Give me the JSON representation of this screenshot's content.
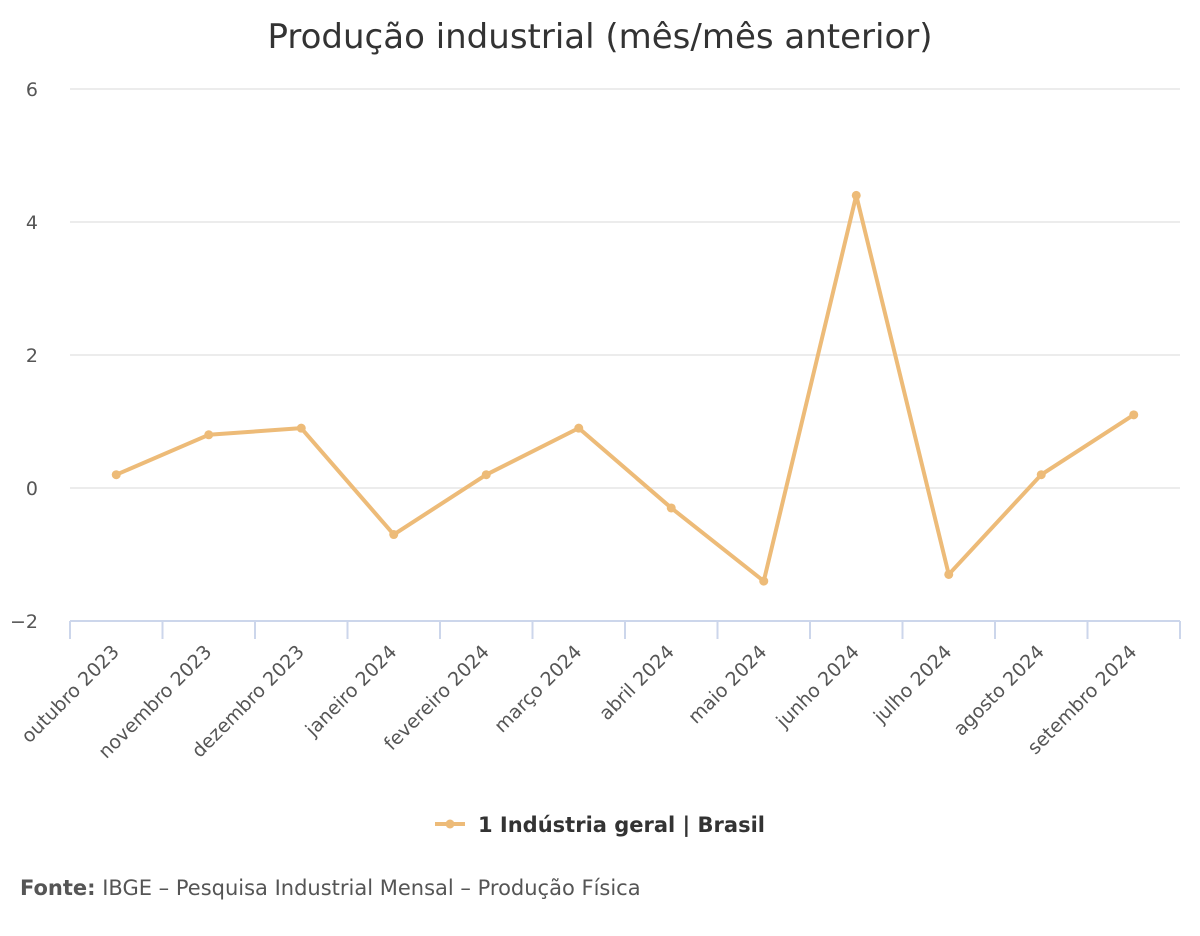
{
  "chart_data": {
    "type": "line",
    "title": "Produção industrial (mês/mês anterior)",
    "xlabel": "",
    "ylabel": "",
    "categories": [
      "outubro 2023",
      "novembro 2023",
      "dezembro 2023",
      "janeiro 2024",
      "fevereiro 2024",
      "março 2024",
      "abril 2024",
      "maio 2024",
      "junho 2024",
      "julho 2024",
      "agosto 2024",
      "setembro 2024"
    ],
    "series": [
      {
        "name": "1 Indústria geral | Brasil",
        "color": "#EDBB78",
        "values": [
          0.2,
          0.8,
          0.9,
          -0.7,
          0.2,
          0.9,
          -0.3,
          -1.4,
          4.4,
          -1.3,
          0.2,
          1.1
        ]
      }
    ],
    "ylim": [
      -2,
      6
    ],
    "yticks": [
      6,
      4,
      2,
      0,
      -2
    ],
    "ytick_labels": [
      "6",
      "4",
      "2",
      "0",
      "−2"
    ],
    "grid": true,
    "legend_position": "bottom-center"
  },
  "footer": {
    "label": "Fonte:",
    "text": " IBGE – Pesquisa Industrial Mensal – Produção Física"
  }
}
